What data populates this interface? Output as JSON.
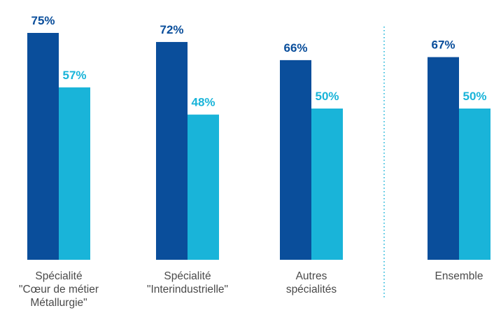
{
  "chart_data": {
    "type": "bar",
    "categories": [
      [
        "Spécialité",
        "\"Cœur de métier",
        "Métallurgie\""
      ],
      [
        "Spécialité",
        "\"Interindustrielle\""
      ],
      [
        "Autres",
        "spécialités"
      ],
      [
        "Ensemble"
      ]
    ],
    "series": [
      {
        "values": [
          75,
          72,
          66,
          67
        ],
        "color": "#0a4e9b"
      },
      {
        "values": [
          57,
          48,
          50,
          50
        ],
        "color": "#19b4d9"
      }
    ],
    "value_labels": [
      [
        "75%",
        "72%",
        "66%",
        "67%"
      ],
      [
        "57%",
        "48%",
        "50%",
        "50%"
      ]
    ],
    "ylim": [
      0,
      75
    ],
    "grid": false,
    "legend": "none",
    "separator": {
      "after_category": 3,
      "style": "dotted",
      "color": "#19b4d9"
    }
  }
}
